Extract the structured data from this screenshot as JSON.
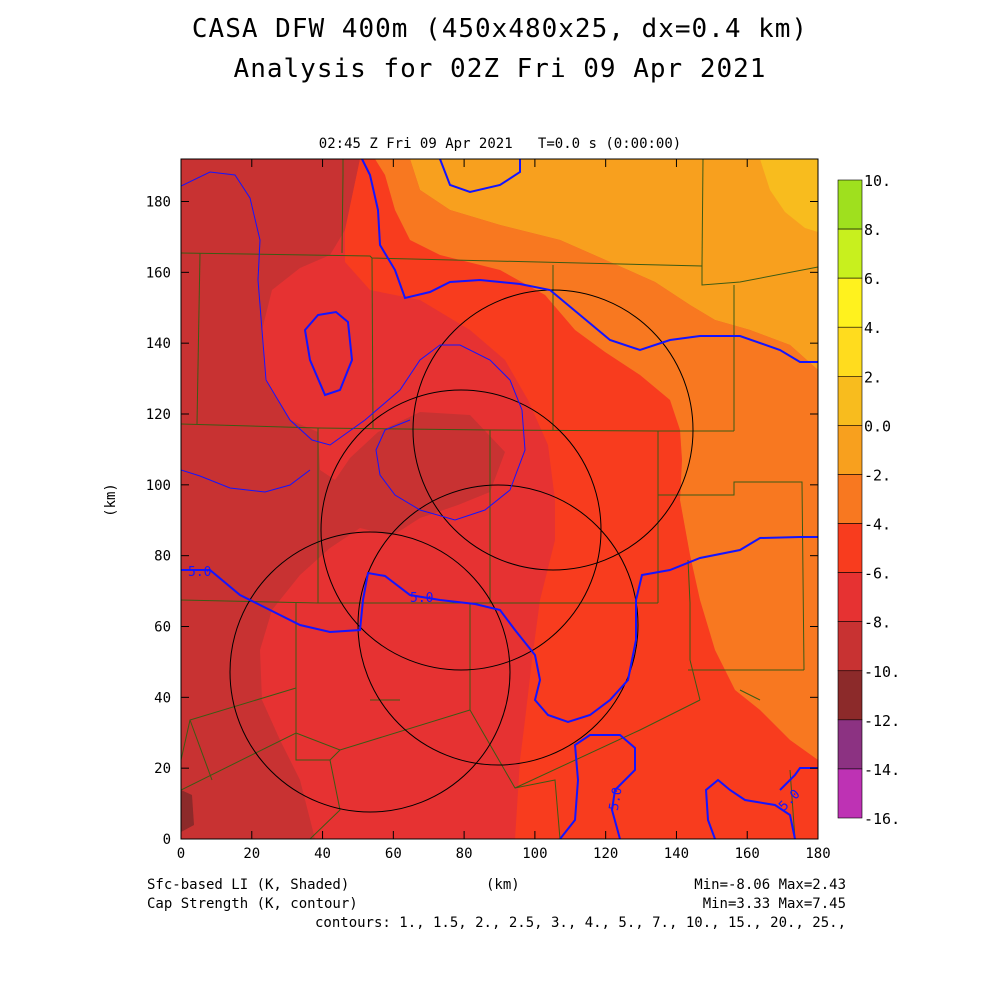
{
  "title": {
    "line1": "CASA DFW 400m (450x480x25, dx=0.4 km)",
    "line2": "Analysis for 02Z Fri 09 Apr 2021"
  },
  "time_label": "02:45 Z Fri 09 Apr 2021   T=0.0 s (0:00:00)",
  "axes": {
    "x_unit": "(km)",
    "y_unit": "(km)",
    "x_ticks": [
      "0",
      "20",
      "40",
      "60",
      "80",
      "100",
      "120",
      "140",
      "160",
      "180"
    ],
    "y_ticks": [
      "0",
      "20",
      "40",
      "60",
      "80",
      "100",
      "120",
      "140",
      "160",
      "180"
    ],
    "x_range": [
      0,
      180
    ],
    "y_range": [
      0,
      192
    ]
  },
  "colorbar": {
    "labels": [
      "10.",
      "8.",
      "6.",
      "4.",
      "2.",
      "0.0",
      "-2.",
      "-4.",
      "-6.",
      "-8.",
      "-10.",
      "-12.",
      "-14.",
      "-16."
    ],
    "colors": [
      "#9fe01e",
      "#c8f01e",
      "#fff21e",
      "#ffdc1e",
      "#f8bc1e",
      "#f8a01e",
      "#f87820",
      "#f83c1e",
      "#e63232",
      "#c83232",
      "#8c2a2a",
      "#8c3282",
      "#be32b4",
      "#dc46dc"
    ]
  },
  "contour_labels": [
    "5.0",
    "5.0",
    "5.0",
    "5.0"
  ],
  "footer": {
    "left1": "Sfc-based LI (K, Shaded)",
    "left2": "Cap Strength (K, contour)",
    "center": "(km)",
    "right1": "Min=-8.06 Max=2.43",
    "right2": "Min=3.33 Max=7.45",
    "right3": "contours: 1., 1.5, 2., 2.5, 3., 4., 5., 7., 10., 15., 20., 25.,"
  },
  "colors": {
    "contour": "#1414ff",
    "county_line": "#3c5a14",
    "radar_ring": "#000000"
  }
}
